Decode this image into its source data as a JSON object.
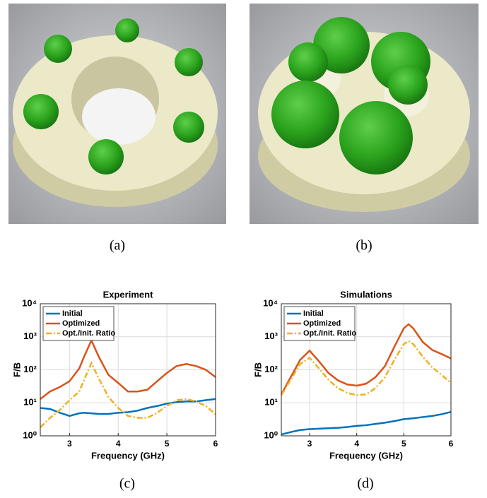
{
  "figure": {
    "captions": [
      "(a)",
      "(b)",
      "(c)",
      "(d)"
    ]
  },
  "chart_data": [
    {
      "type": "line",
      "title": "Experiment",
      "xlabel": "Frequency (GHz)",
      "ylabel": "F/B",
      "log_y": true,
      "grid": true,
      "legend": "upper left",
      "xlim": [
        2.4,
        6
      ],
      "xticks": [
        3,
        4,
        5,
        6
      ],
      "ylim": [
        1,
        10000
      ],
      "yticks": [
        {
          "value": 1,
          "label": "10⁰"
        },
        {
          "value": 10,
          "label": "10¹"
        },
        {
          "value": 100,
          "label": "10²"
        },
        {
          "value": 1000,
          "label": "10³"
        },
        {
          "value": 10000,
          "label": "10⁴"
        }
      ],
      "x": [
        2.4,
        2.6,
        2.8,
        3.0,
        3.2,
        3.3,
        3.45,
        3.6,
        3.8,
        4.0,
        4.2,
        4.4,
        4.6,
        4.8,
        5.0,
        5.2,
        5.4,
        5.6,
        5.8,
        6.0
      ],
      "series": [
        {
          "name": "Initial",
          "color": "#0072bd",
          "dash": "none",
          "values": [
            7,
            6.5,
            5,
            4,
            4.8,
            5,
            4.8,
            4.6,
            4.6,
            5,
            5.2,
            5.8,
            7,
            8,
            9.5,
            10.5,
            11,
            11,
            12,
            13
          ]
        },
        {
          "name": "Optimized",
          "color": "#d95319",
          "dash": "none",
          "values": [
            13,
            22,
            30,
            45,
            110,
            250,
            780,
            250,
            70,
            40,
            22,
            22,
            25,
            45,
            80,
            130,
            150,
            130,
            100,
            60
          ]
        },
        {
          "name": "Opt./Init. Ratio",
          "color": "#edb120",
          "dash": "8 3 2 3",
          "values": [
            1.8,
            3.5,
            6,
            12,
            22,
            50,
            160,
            55,
            15,
            7,
            4,
            3.5,
            3.5,
            5,
            8,
            12,
            13,
            11,
            8,
            4.5
          ]
        }
      ]
    },
    {
      "type": "line",
      "title": "Simulations",
      "xlabel": "Frequency (GHz)",
      "ylabel": "F/B",
      "log_y": true,
      "grid": true,
      "legend": "upper left",
      "xlim": [
        2.4,
        6
      ],
      "xticks": [
        3,
        4,
        5,
        6
      ],
      "ylim": [
        1,
        10000
      ],
      "yticks": [
        {
          "value": 1,
          "label": "10⁰"
        },
        {
          "value": 10,
          "label": "10¹"
        },
        {
          "value": 100,
          "label": "10²"
        },
        {
          "value": 1000,
          "label": "10³"
        },
        {
          "value": 10000,
          "label": "10⁴"
        }
      ],
      "x": [
        2.4,
        2.6,
        2.8,
        3.0,
        3.2,
        3.4,
        3.6,
        3.8,
        4.0,
        4.2,
        4.4,
        4.6,
        4.8,
        5.0,
        5.1,
        5.2,
        5.4,
        5.6,
        5.8,
        6.0
      ],
      "series": [
        {
          "name": "Initial",
          "color": "#0072bd",
          "dash": "none",
          "values": [
            1.1,
            1.3,
            1.5,
            1.6,
            1.65,
            1.7,
            1.75,
            1.85,
            2,
            2.1,
            2.3,
            2.5,
            2.8,
            3.2,
            3.3,
            3.4,
            3.7,
            4,
            4.5,
            5.3
          ]
        },
        {
          "name": "Optimized",
          "color": "#d95319",
          "dash": "none",
          "values": [
            18,
            60,
            200,
            380,
            180,
            80,
            48,
            36,
            33,
            38,
            60,
            130,
            500,
            1800,
            2400,
            1800,
            700,
            400,
            300,
            220
          ]
        },
        {
          "name": "Opt./Init. Ratio",
          "color": "#edb120",
          "dash": "8 3 2 3",
          "values": [
            17,
            50,
            150,
            230,
            110,
            50,
            28,
            20,
            17,
            18,
            28,
            60,
            200,
            600,
            750,
            600,
            250,
            120,
            70,
            40
          ]
        }
      ]
    }
  ]
}
